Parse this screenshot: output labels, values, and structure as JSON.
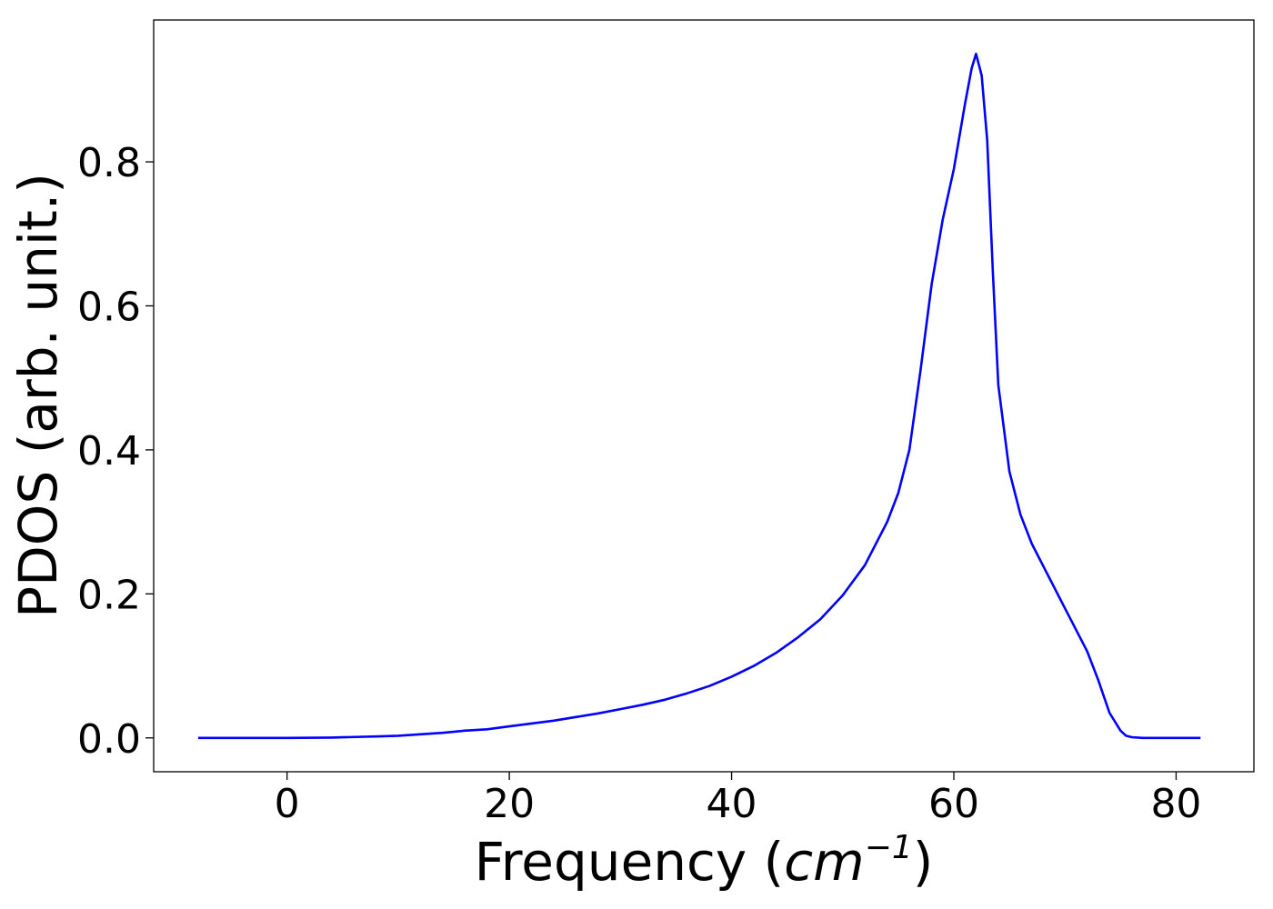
{
  "chart_data": {
    "type": "line",
    "title": "",
    "xlabel": "Frequency (",
    "xlabel_unit_base": "cm",
    "xlabel_unit_exp": "−1",
    "xlabel_close": ")",
    "ylabel": "PDOS (arb. unit.)",
    "xlim": [
      -12,
      87
    ],
    "ylim": [
      -0.047,
      0.997
    ],
    "xticks": [
      0,
      20,
      40,
      60,
      80
    ],
    "xtick_labels": [
      "0",
      "20",
      "40",
      "60",
      "80"
    ],
    "yticks": [
      0.0,
      0.2,
      0.4,
      0.6,
      0.8
    ],
    "ytick_labels": [
      "0.0",
      "0.2",
      "0.4",
      "0.6",
      "0.8"
    ],
    "grid": false,
    "legend": "none",
    "series": [
      {
        "color": "#0000ff",
        "x": [
          -8,
          -4,
          0,
          4,
          8,
          10,
          12,
          14,
          16,
          18,
          20,
          22,
          24,
          26,
          28,
          30,
          32,
          34,
          36,
          38,
          40,
          42,
          44,
          46,
          48,
          50,
          52,
          54,
          55,
          56,
          57,
          58,
          59,
          60,
          61,
          61.6,
          62,
          62.5,
          63,
          63.5,
          64,
          64.5,
          65,
          66,
          67,
          68,
          70,
          72,
          73,
          74,
          75,
          75.5,
          76,
          77,
          80,
          82.2
        ],
        "y": [
          0.0,
          0.0,
          0.0,
          0.0005,
          0.002,
          0.003,
          0.005,
          0.007,
          0.01,
          0.012,
          0.016,
          0.02,
          0.024,
          0.029,
          0.034,
          0.04,
          0.046,
          0.053,
          0.062,
          0.072,
          0.085,
          0.1,
          0.118,
          0.14,
          0.165,
          0.198,
          0.24,
          0.3,
          0.34,
          0.4,
          0.51,
          0.63,
          0.72,
          0.79,
          0.88,
          0.93,
          0.95,
          0.92,
          0.83,
          0.65,
          0.49,
          0.43,
          0.37,
          0.31,
          0.27,
          0.24,
          0.18,
          0.12,
          0.08,
          0.035,
          0.01,
          0.003,
          0.001,
          0.0,
          0.0,
          0.0
        ]
      }
    ]
  }
}
